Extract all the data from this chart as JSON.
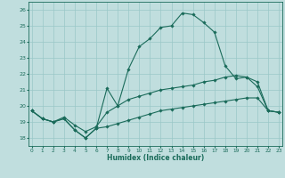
{
  "bg_color": "#c0dede",
  "grid_color": "#9ac8c8",
  "line_color": "#1a6b5a",
  "xlim": [
    -0.3,
    23.3
  ],
  "ylim": [
    17.5,
    26.5
  ],
  "xticks": [
    0,
    1,
    2,
    3,
    4,
    5,
    6,
    7,
    8,
    9,
    10,
    11,
    12,
    13,
    14,
    15,
    16,
    17,
    18,
    19,
    20,
    21,
    22,
    23
  ],
  "yticks": [
    18,
    19,
    20,
    21,
    22,
    23,
    24,
    25,
    26
  ],
  "xlabel": "Humidex (Indice chaleur)",
  "series1_x": [
    0,
    1,
    2,
    3,
    4,
    5,
    6,
    7,
    8,
    9,
    10,
    11,
    12,
    13,
    14,
    15,
    16,
    17,
    18,
    19,
    20,
    21,
    22,
    23
  ],
  "series1_y": [
    19.7,
    19.2,
    19.0,
    19.2,
    18.5,
    18.0,
    18.6,
    21.1,
    20.0,
    22.3,
    23.7,
    24.2,
    24.9,
    25.0,
    25.8,
    25.7,
    25.2,
    24.6,
    22.5,
    21.7,
    21.8,
    21.2,
    19.7,
    19.6
  ],
  "series2_x": [
    0,
    1,
    2,
    3,
    4,
    5,
    6,
    7,
    8,
    9,
    10,
    11,
    12,
    13,
    14,
    15,
    16,
    17,
    18,
    19,
    20,
    21,
    22,
    23
  ],
  "series2_y": [
    19.7,
    19.2,
    19.0,
    19.3,
    18.8,
    18.4,
    18.7,
    19.6,
    20.0,
    20.4,
    20.6,
    20.8,
    21.0,
    21.1,
    21.2,
    21.3,
    21.5,
    21.6,
    21.8,
    21.9,
    21.8,
    21.5,
    19.7,
    19.6
  ],
  "series3_x": [
    0,
    1,
    2,
    3,
    4,
    5,
    6,
    7,
    8,
    9,
    10,
    11,
    12,
    13,
    14,
    15,
    16,
    17,
    18,
    19,
    20,
    21,
    22,
    23
  ],
  "series3_y": [
    19.7,
    19.2,
    19.0,
    19.2,
    18.5,
    18.0,
    18.6,
    18.7,
    18.9,
    19.1,
    19.3,
    19.5,
    19.7,
    19.8,
    19.9,
    20.0,
    20.1,
    20.2,
    20.3,
    20.4,
    20.5,
    20.5,
    19.7,
    19.6
  ]
}
